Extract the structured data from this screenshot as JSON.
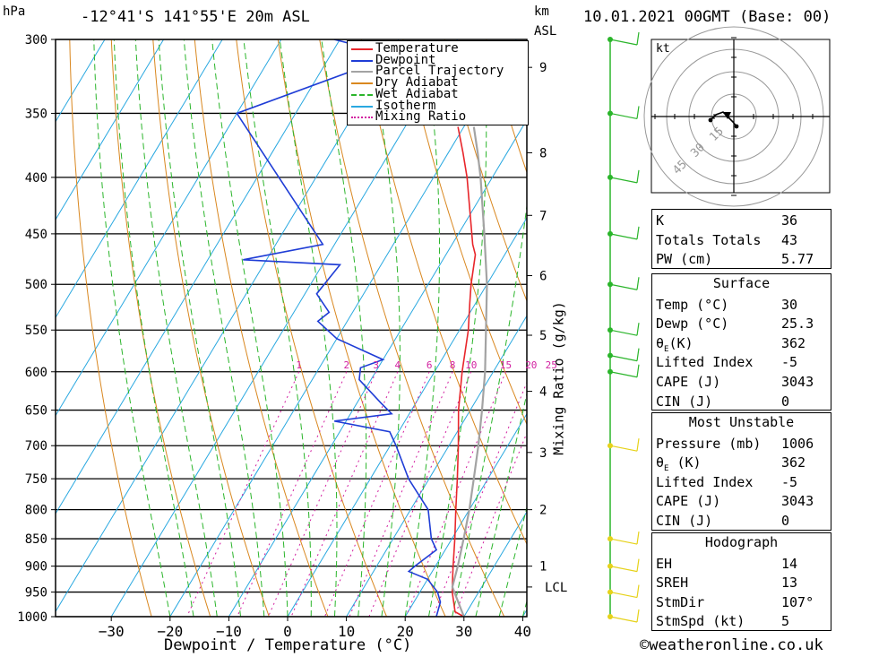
{
  "header": {
    "station": "-12°41'S 141°55'E 20m ASL",
    "datetime": "10.01.2021 00GMT (Base: 00)",
    "hpa_unit": "hPa",
    "km_unit": "km",
    "asl_unit": "ASL"
  },
  "legend": [
    {
      "label": "Temperature",
      "color": "#e8262b"
    },
    {
      "label": "Dewpoint",
      "color": "#1f3dd6"
    },
    {
      "label": "Parcel Trajectory",
      "color": "#a3a3a3"
    },
    {
      "label": "Dry Adiabat",
      "color": "#d9871f"
    },
    {
      "label": "Wet Adiabat",
      "color": "#2bb52b"
    },
    {
      "label": "Isotherm",
      "color": "#29a8e0"
    },
    {
      "label": "Mixing Ratio",
      "color": "#d21fa0"
    }
  ],
  "chart_data": {
    "type": "skew-t",
    "title": "-12°41'S 141°55'E 20m ASL",
    "xlabel": "Dewpoint / Temperature (°C)",
    "ylabel": "hPa",
    "y2label": "Mixing Ratio (g/kg)",
    "x_ticks": [
      -30,
      -20,
      -10,
      0,
      10,
      20,
      30,
      40
    ],
    "pressure_ticks": [
      300,
      350,
      400,
      450,
      500,
      550,
      600,
      650,
      700,
      750,
      800,
      850,
      900,
      950,
      1000
    ],
    "km_ticks": [
      {
        "label": "9",
        "p": 318
      },
      {
        "label": "8",
        "p": 380
      },
      {
        "label": "7",
        "p": 433
      },
      {
        "label": "6",
        "p": 491
      },
      {
        "label": "5",
        "p": 556
      },
      {
        "label": "4",
        "p": 625
      },
      {
        "label": "3",
        "p": 710
      },
      {
        "label": "2",
        "p": 800
      },
      {
        "label": "1",
        "p": 900
      },
      {
        "label": "LCL",
        "p": 940
      }
    ],
    "mixing_ratio_labels": [
      "1",
      "2",
      "3",
      "4",
      "6",
      "8",
      "10",
      "15",
      "20",
      "25"
    ],
    "series": [
      {
        "name": "Temperature",
        "points": [
          [
            1000,
            30
          ],
          [
            990,
            28
          ],
          [
            950,
            25.5
          ],
          [
            920,
            24
          ],
          [
            900,
            23
          ],
          [
            850,
            20.5
          ],
          [
            800,
            17.7
          ],
          [
            750,
            14.8
          ],
          [
            700,
            11.6
          ],
          [
            650,
            8
          ],
          [
            600,
            4.7
          ],
          [
            550,
            1.5
          ],
          [
            520,
            -1
          ],
          [
            500,
            -2.7
          ],
          [
            470,
            -5
          ],
          [
            460,
            -6.5
          ],
          [
            400,
            -14.3
          ],
          [
            380,
            -17.5
          ],
          [
            360,
            -21
          ]
        ]
      },
      {
        "name": "Dewpoint",
        "points": [
          [
            1000,
            25.3
          ],
          [
            970,
            24.5
          ],
          [
            950,
            23
          ],
          [
            925,
            20
          ],
          [
            910,
            16
          ],
          [
            900,
            16.5
          ],
          [
            870,
            18.5
          ],
          [
            850,
            16.5
          ],
          [
            800,
            13
          ],
          [
            750,
            6.5
          ],
          [
            700,
            1
          ],
          [
            680,
            -1.5
          ],
          [
            665,
            -12
          ],
          [
            655,
            -3
          ],
          [
            640,
            -6
          ],
          [
            610,
            -12
          ],
          [
            595,
            -13
          ],
          [
            585,
            -10
          ],
          [
            560,
            -20
          ],
          [
            540,
            -25
          ],
          [
            530,
            -24
          ],
          [
            510,
            -28
          ],
          [
            480,
            -27
          ],
          [
            475,
            -44
          ],
          [
            460,
            -32
          ],
          [
            350,
            -60
          ],
          [
            310,
            -39
          ],
          [
            300,
            -51
          ]
        ]
      },
      {
        "name": "Parcel Trajectory",
        "points": [
          [
            1000,
            30
          ],
          [
            940,
            25
          ],
          [
            900,
            23.8
          ],
          [
            850,
            22
          ],
          [
            800,
            20
          ],
          [
            750,
            17.6
          ],
          [
            700,
            15
          ],
          [
            650,
            12
          ],
          [
            600,
            8.6
          ],
          [
            550,
            4.5
          ],
          [
            500,
            0
          ],
          [
            450,
            -5.6
          ],
          [
            400,
            -12
          ],
          [
            380,
            -15
          ],
          [
            360,
            -18.3
          ]
        ]
      }
    ],
    "wind_barbs": [
      {
        "p": 1000,
        "level": 1
      },
      {
        "p": 950,
        "level": 1
      },
      {
        "p": 900,
        "level": 1
      },
      {
        "p": 850,
        "level": 1
      },
      {
        "p": 700,
        "level": 2
      },
      {
        "p": 600,
        "level": 3
      },
      {
        "p": 580,
        "level": 3
      },
      {
        "p": 550,
        "level": 3
      },
      {
        "p": 500,
        "level": 3
      },
      {
        "p": 450,
        "level": 3
      },
      {
        "p": 400,
        "level": 3
      },
      {
        "p": 350,
        "level": 3
      },
      {
        "p": 300,
        "level": 3
      }
    ],
    "hodograph": {
      "unit": "kt",
      "rings": [
        "15",
        "30",
        "45"
      ]
    }
  },
  "indices": {
    "rows": [
      {
        "k": "K",
        "v": "36"
      },
      {
        "k": "Totals Totals",
        "v": "43"
      },
      {
        "k": "PW (cm)",
        "v": "5.77"
      }
    ]
  },
  "surface": {
    "title": "Surface",
    "rows": [
      {
        "k": "Temp (°C)",
        "v": "30"
      },
      {
        "k": "Dewp (°C)",
        "v": "25.3"
      },
      {
        "k": "θE(K)",
        "v": "362"
      },
      {
        "k": "Lifted Index",
        "v": "-5"
      },
      {
        "k": "CAPE (J)",
        "v": "3043"
      },
      {
        "k": "CIN (J)",
        "v": "0"
      }
    ]
  },
  "most_unstable": {
    "title": "Most Unstable",
    "rows": [
      {
        "k": "Pressure (mb)",
        "v": "1006"
      },
      {
        "k": "θE (K)",
        "v": "362"
      },
      {
        "k": "Lifted Index",
        "v": "-5"
      },
      {
        "k": "CAPE (J)",
        "v": "3043"
      },
      {
        "k": "CIN (J)",
        "v": "0"
      }
    ]
  },
  "hodograph_panel": {
    "title": "Hodograph",
    "rows": [
      {
        "k": "EH",
        "v": "14"
      },
      {
        "k": "SREH",
        "v": "13"
      },
      {
        "k": "StmDir",
        "v": "107°"
      },
      {
        "k": "StmSpd (kt)",
        "v": "5"
      }
    ]
  },
  "footer": {
    "copyright": "©weatheronline.co.uk"
  }
}
